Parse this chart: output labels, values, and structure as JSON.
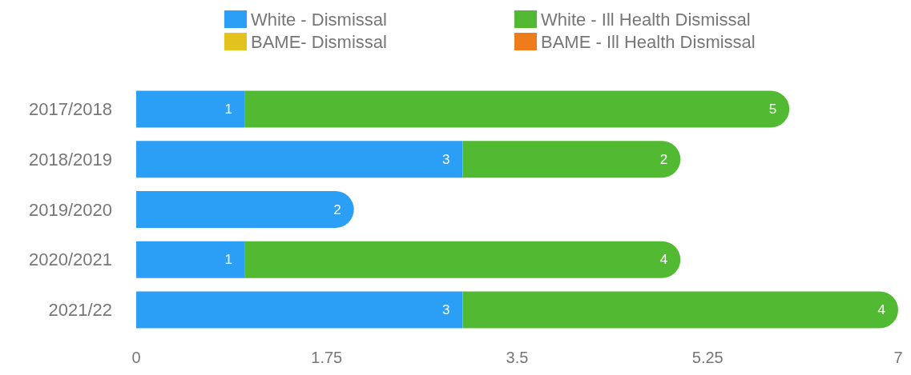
{
  "chart_data": {
    "type": "bar",
    "orientation": "horizontal",
    "stacked": true,
    "data_labels": true,
    "grid": false,
    "legend": "top",
    "categories": [
      "2017/2018",
      "2018/2019",
      "2019/2020",
      "2020/2021",
      "2021/22"
    ],
    "xlim": [
      0,
      7
    ],
    "xticks": [
      0,
      1.75,
      3.5,
      5.25,
      7
    ],
    "series": [
      {
        "name": "White - Dismissal",
        "color": "#2b9ef5",
        "values": [
          1,
          3,
          2,
          1,
          3
        ]
      },
      {
        "name": "White - Ill Health Dismissal",
        "color": "#52b932",
        "values": [
          5,
          2,
          null,
          4,
          4
        ]
      },
      {
        "name": "BAME- Dismissal",
        "color": "#e2c21c",
        "values": [
          null,
          null,
          null,
          null,
          null
        ]
      },
      {
        "name": "BAME - Ill Health Dismissal",
        "color": "#ee7c1a",
        "values": [
          null,
          null,
          null,
          null,
          null
        ]
      }
    ]
  }
}
